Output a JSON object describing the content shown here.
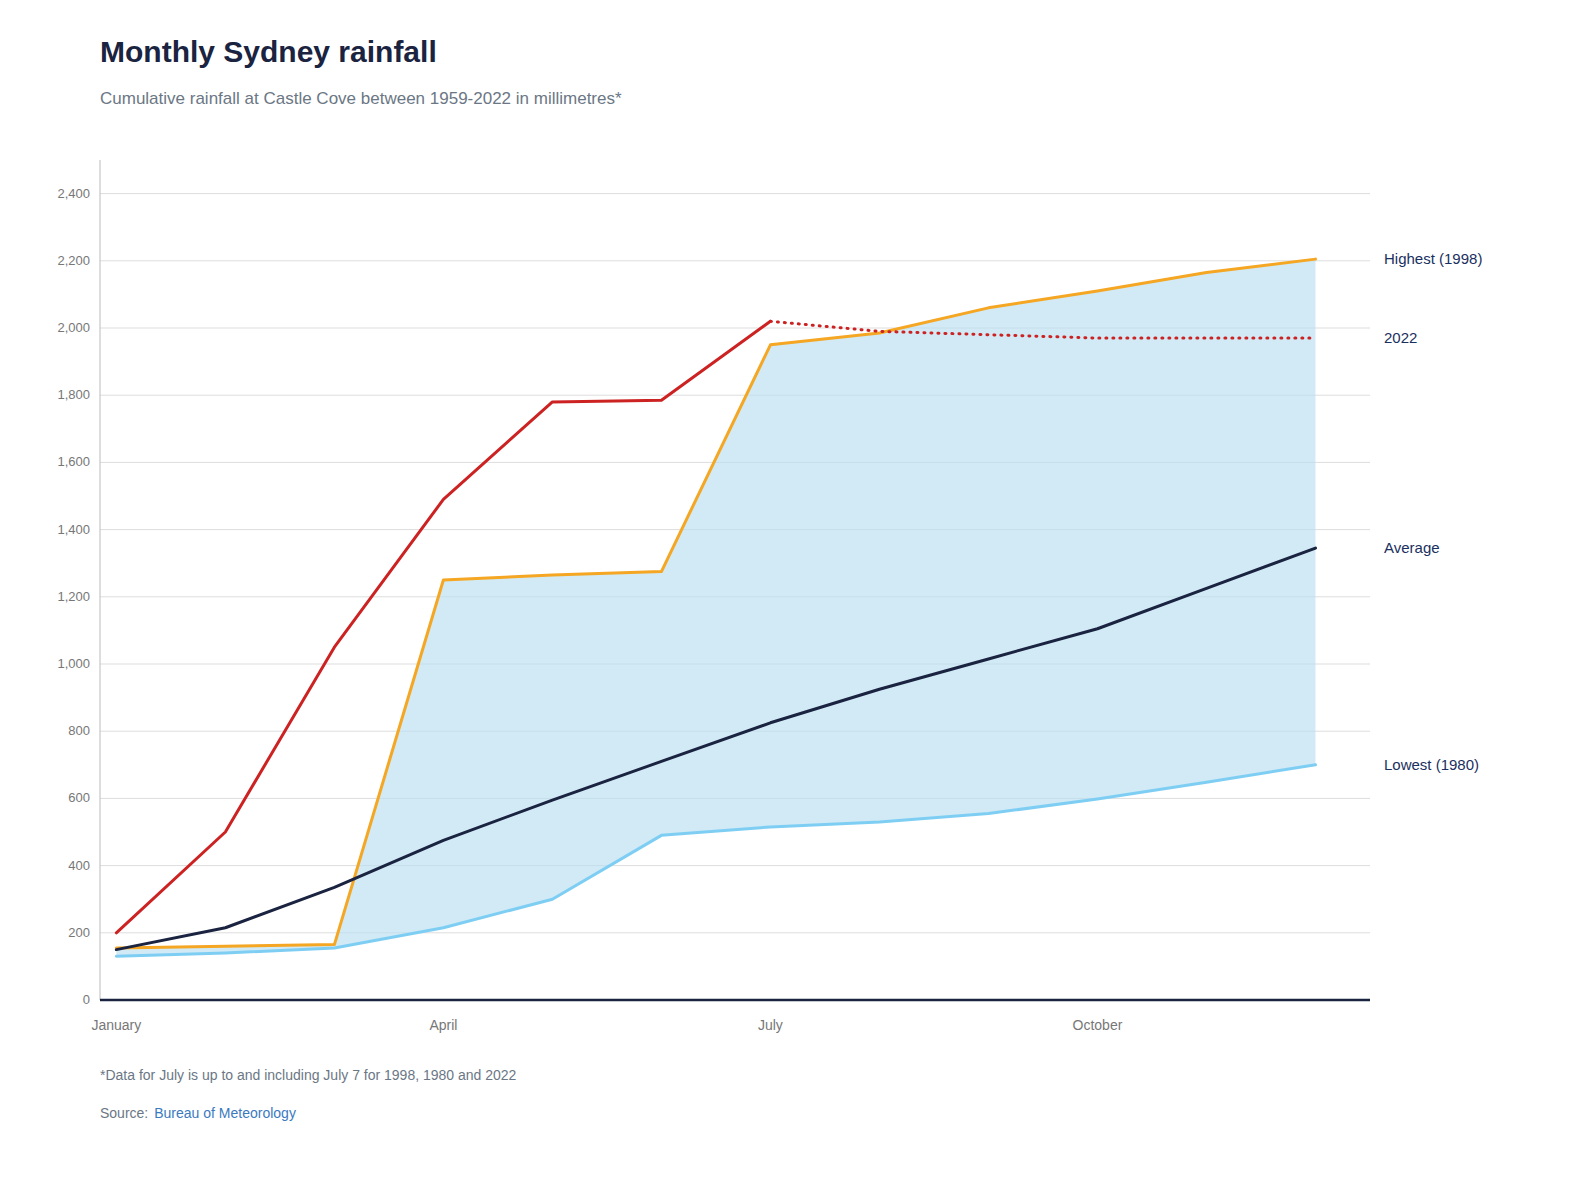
{
  "chart_data": {
    "type": "line",
    "title": "Monthly Sydney rainfall",
    "subtitle": "Cumulative rainfall at Castle Cove between 1959-2022 in millimetres*",
    "footnote": "*Data for July is up to and including July 7 for 1998, 1980 and 2022",
    "source_label": "Source:",
    "source": "Bureau of Meteorology",
    "categories": [
      "January",
      null,
      null,
      "April",
      null,
      null,
      "July",
      null,
      null,
      "October",
      null,
      null
    ],
    "ylim": [
      0,
      2500
    ],
    "yticks": [
      0,
      200,
      400,
      600,
      800,
      {
        "value": 1000,
        "label": "1,000"
      },
      {
        "value": 1200,
        "label": "1,200"
      },
      {
        "value": 1400,
        "label": "1,400"
      },
      {
        "value": 1600,
        "label": "1,600"
      },
      {
        "value": 1800,
        "label": "1,800"
      },
      {
        "value": 2000,
        "label": "2,000"
      },
      {
        "value": 2200,
        "label": "2,200"
      },
      {
        "value": 2400,
        "label": "2,400"
      }
    ],
    "grid": true,
    "band": {
      "lower": "Lowest (1980)",
      "upper": "Highest (1998)",
      "color": "#b8dff0"
    },
    "series": [
      {
        "name": "Lowest (1980)",
        "color": "#7ecef4",
        "values": [
          130,
          140,
          155,
          215,
          300,
          490,
          515,
          530,
          555,
          598,
          648,
          700
        ]
      },
      {
        "name": "Highest (1998)",
        "color": "#f5a623",
        "values": [
          155,
          160,
          165,
          1250,
          1265,
          1275,
          1950,
          1985,
          2060,
          2110,
          2165,
          2205
        ]
      },
      {
        "name": "Average",
        "color": "#1a2340",
        "values": [
          150,
          215,
          335,
          475,
          595,
          710,
          825,
          925,
          1015,
          1105,
          1225,
          1345
        ]
      },
      {
        "name": "2022",
        "color": "#cc2222",
        "values": [
          200,
          500,
          1050,
          1490,
          1780,
          1785,
          2020,
          null,
          null,
          null,
          null,
          null
        ]
      },
      {
        "color": "#cc2222",
        "line_style": "dotted",
        "values": [
          null,
          null,
          null,
          null,
          null,
          null,
          2020,
          1990,
          1980,
          1970,
          1970,
          1970
        ]
      }
    ]
  }
}
